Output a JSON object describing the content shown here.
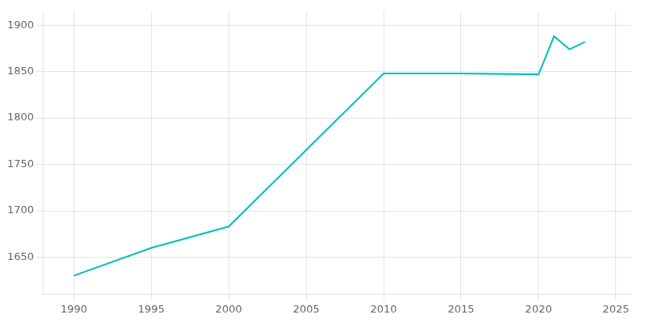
{
  "chart_data": {
    "type": "line",
    "x": [
      1990,
      1995,
      2000,
      2010,
      2015,
      2020,
      2021,
      2022,
      2023
    ],
    "values": [
      1630,
      1660,
      1683,
      1848,
      1848,
      1847,
      1888,
      1874,
      1882
    ],
    "color": "#00bfbf",
    "xlim": [
      1988,
      2026
    ],
    "ylim": [
      1610,
      1915
    ],
    "xticks": [
      1990,
      1995,
      2000,
      2005,
      2010,
      2015,
      2020,
      2025
    ],
    "yticks": [
      1650,
      1700,
      1750,
      1800,
      1850,
      1900
    ],
    "grid": true
  }
}
